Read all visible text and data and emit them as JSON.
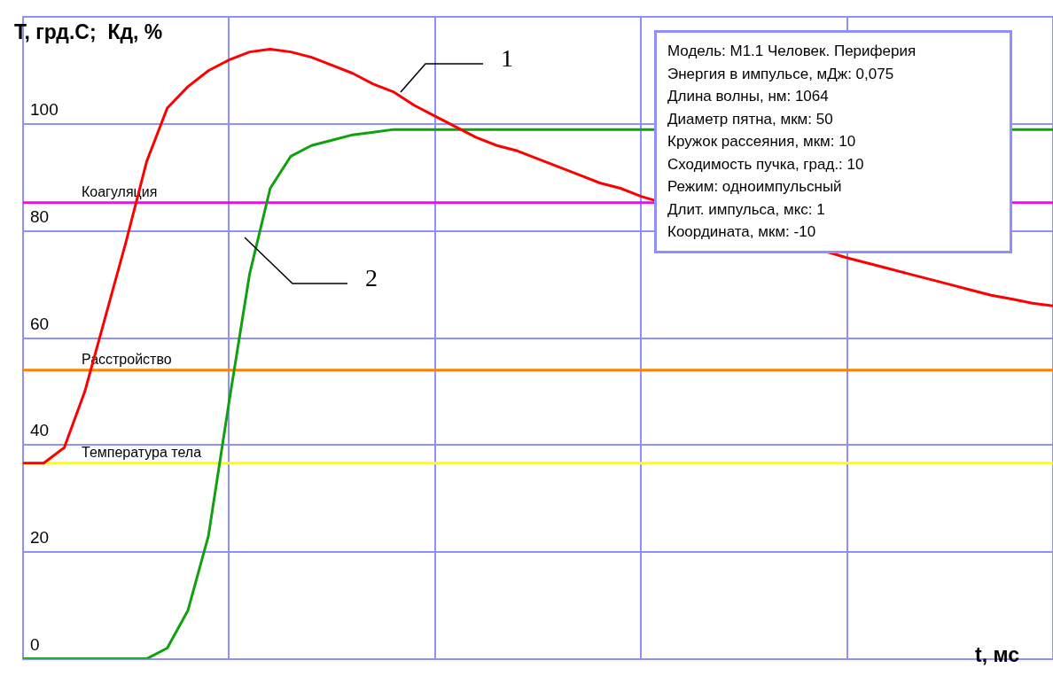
{
  "chart_data": {
    "type": "line",
    "ylabel": "T, грд.С;  Кд, %",
    "categories": [
      null,
      null,
      null,
      null,
      null,
      null,
      null,
      null,
      null,
      null,
      null,
      null,
      null,
      null,
      null,
      null,
      null,
      null,
      null,
      null,
      null,
      null,
      null,
      null,
      null,
      null,
      null,
      null,
      null,
      null,
      null,
      null,
      null,
      null,
      null,
      null,
      null,
      null,
      null,
      null,
      null,
      null,
      null,
      null,
      null,
      null,
      null,
      null,
      null,
      null,
      null
    ],
    "series": [
      {
        "color": "#ff0000",
        "values": [
          36.6,
          36.6,
          39.5,
          50,
          64,
          78,
          93,
          103,
          107,
          110,
          112,
          113.5,
          114,
          113.5,
          112.5,
          111,
          109.5,
          107.5,
          106,
          103.5,
          101.5,
          99.5,
          97.5,
          96,
          95,
          93.5,
          92,
          90.5,
          89,
          88,
          86.5,
          null,
          null,
          null,
          null,
          null,
          null,
          null,
          null,
          null,
          75,
          74,
          73,
          72,
          71,
          70,
          69,
          68,
          67.3,
          66.5,
          66
        ]
      },
      {
        "color": "#10a010",
        "values": [
          0,
          0,
          0,
          0,
          0,
          0,
          0,
          2,
          9,
          23,
          48,
          72,
          88,
          94,
          96,
          97,
          98,
          98.5,
          99,
          99,
          99,
          99,
          99,
          99,
          99,
          99,
          99,
          99,
          99,
          99,
          99,
          null,
          null,
          null,
          null,
          null,
          null,
          null,
          null,
          null,
          null,
          null,
          null,
          null,
          null,
          null,
          null,
          null,
          null,
          99,
          99
        ]
      }
    ],
    "ylim": [
      0,
      120
    ],
    "yticks": [
      0,
      20,
      40,
      60,
      80,
      100,
      {
        "value": 120,
        "label": null
      }
    ],
    "grid": true,
    "legend": false,
    "marker": "none",
    "line_style": "solid",
    "ref_lines": [
      {
        "axis": "y",
        "value": 85.3,
        "label": "Коагуляция",
        "color": "#ff00ff"
      },
      {
        "axis": "y",
        "value": 54,
        "label": "Расстройство",
        "color": "#ff8000"
      },
      {
        "axis": "y",
        "value": 36.6,
        "label": "Температура тела",
        "color": "#ffff00"
      }
    ],
    "annotations": [
      "t, мс",
      "1",
      "2",
      "Модель: M1.1 Человек. Периферия",
      "Энергия в импульсе, мДж: 0,075",
      "Длина волны, нм: 1064",
      "Диаметр пятна, мкм: 50",
      "Кружок рассеяния, мкм: 10",
      "Сходимость пучка, град.: 10",
      "Режим: одноимпульсный",
      "Длит. импульса, мкс: 1",
      "Координата, мкм: -10"
    ]
  }
}
